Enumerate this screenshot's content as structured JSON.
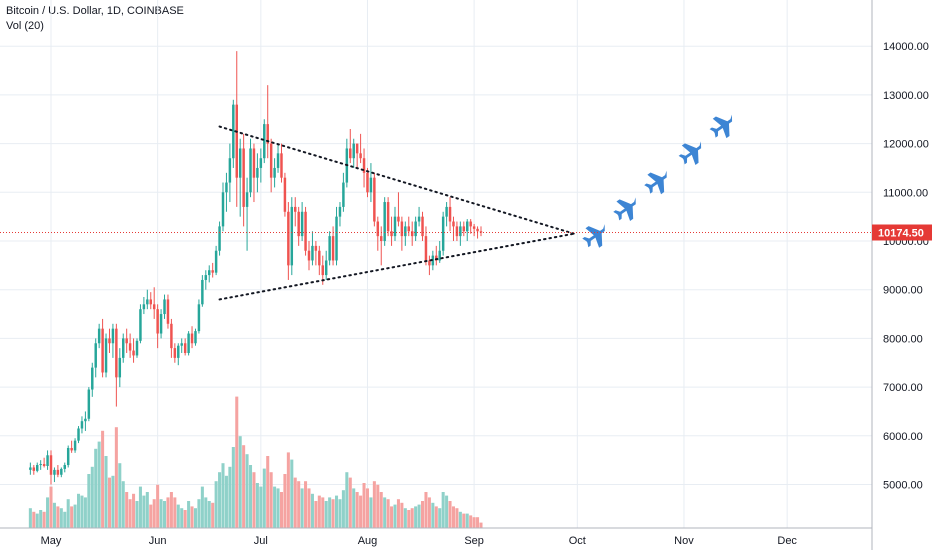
{
  "legend": {
    "symbol_line": "Bitcoin / U.S. Dollar, 1D, COINBASE",
    "volume_line": "Vol (20)"
  },
  "colors": {
    "up": "#26a69a",
    "down": "#ef5350",
    "vol_up": "#8fd1c9",
    "vol_down": "#f5a3a1",
    "grid": "#e8edf3",
    "price_line": "#e53935",
    "price_label_bg": "#e53935",
    "trendline": "#131722",
    "jet": "#3d85d4"
  },
  "icons": [
    "fighter-jet-icon"
  ],
  "chart_data": {
    "type": "candlestick",
    "title": "Bitcoin / U.S. Dollar, 1D, COINBASE",
    "indicator": "Vol (20)",
    "ylim": [
      4000,
      15000
    ],
    "y_ticks": [
      "14000.00",
      "13000.00",
      "12000.00",
      "11000.00",
      "10000.00",
      "9000.00",
      "8000.00",
      "7000.00",
      "6000.00",
      "5000.00"
    ],
    "x_ticks": [
      "May",
      "Jun",
      "Jul",
      "Aug",
      "Sep",
      "Oct",
      "Nov",
      "Dec"
    ],
    "x_tick_dates": [
      "2019-05-01",
      "2019-06-01",
      "2019-07-01",
      "2019-08-01",
      "2019-09-01",
      "2019-10-01",
      "2019-11-01",
      "2019-12-01"
    ],
    "last_price": "10174.50",
    "last_price_value": 10174.5,
    "grid": true,
    "start_date": "2019-04-25",
    "candles": [
      {
        "o": 5300,
        "h": 5450,
        "l": 5200,
        "c": 5350,
        "v": 1.1
      },
      {
        "o": 5350,
        "h": 5400,
        "l": 5200,
        "c": 5280,
        "v": 0.9
      },
      {
        "o": 5280,
        "h": 5450,
        "l": 5250,
        "c": 5400,
        "v": 0.8
      },
      {
        "o": 5400,
        "h": 5500,
        "l": 5300,
        "c": 5420,
        "v": 1.0
      },
      {
        "o": 5420,
        "h": 5550,
        "l": 5350,
        "c": 5380,
        "v": 0.9
      },
      {
        "o": 5380,
        "h": 5700,
        "l": 5300,
        "c": 5600,
        "v": 1.7
      },
      {
        "o": 5600,
        "h": 5700,
        "l": 5000,
        "c": 5200,
        "v": 2.3
      },
      {
        "o": 5200,
        "h": 5350,
        "l": 5050,
        "c": 5300,
        "v": 1.4
      },
      {
        "o": 5300,
        "h": 5400,
        "l": 5150,
        "c": 5200,
        "v": 1.2
      },
      {
        "o": 5200,
        "h": 5350,
        "l": 5150,
        "c": 5320,
        "v": 1.1
      },
      {
        "o": 5320,
        "h": 5450,
        "l": 5250,
        "c": 5400,
        "v": 0.9
      },
      {
        "o": 5400,
        "h": 5800,
        "l": 5350,
        "c": 5750,
        "v": 1.6
      },
      {
        "o": 5750,
        "h": 5900,
        "l": 5650,
        "c": 5700,
        "v": 1.2
      },
      {
        "o": 5700,
        "h": 5950,
        "l": 5650,
        "c": 5900,
        "v": 1.3
      },
      {
        "o": 5900,
        "h": 6200,
        "l": 5850,
        "c": 6150,
        "v": 1.9
      },
      {
        "o": 6150,
        "h": 6400,
        "l": 6050,
        "c": 6300,
        "v": 1.8
      },
      {
        "o": 6300,
        "h": 6500,
        "l": 6100,
        "c": 6350,
        "v": 1.7
      },
      {
        "o": 6350,
        "h": 7000,
        "l": 6300,
        "c": 6950,
        "v": 3.0
      },
      {
        "o": 6950,
        "h": 7500,
        "l": 6800,
        "c": 7400,
        "v": 3.4
      },
      {
        "o": 7400,
        "h": 8000,
        "l": 7200,
        "c": 7900,
        "v": 4.4
      },
      {
        "o": 7900,
        "h": 8300,
        "l": 7800,
        "c": 8200,
        "v": 4.8
      },
      {
        "o": 8200,
        "h": 8400,
        "l": 7200,
        "c": 7300,
        "v": 5.4
      },
      {
        "o": 7300,
        "h": 8100,
        "l": 7200,
        "c": 8000,
        "v": 4.0
      },
      {
        "o": 8000,
        "h": 8200,
        "l": 7700,
        "c": 7900,
        "v": 2.8
      },
      {
        "o": 7900,
        "h": 8300,
        "l": 7600,
        "c": 8200,
        "v": 2.9
      },
      {
        "o": 8200,
        "h": 8300,
        "l": 6600,
        "c": 7200,
        "v": 5.6
      },
      {
        "o": 7200,
        "h": 7800,
        "l": 7000,
        "c": 7600,
        "v": 3.6
      },
      {
        "o": 7600,
        "h": 8100,
        "l": 7500,
        "c": 8000,
        "v": 2.6
      },
      {
        "o": 8000,
        "h": 8200,
        "l": 7700,
        "c": 7900,
        "v": 2.0
      },
      {
        "o": 7900,
        "h": 8100,
        "l": 7600,
        "c": 7750,
        "v": 1.6
      },
      {
        "o": 7750,
        "h": 8000,
        "l": 7500,
        "c": 7650,
        "v": 1.9
      },
      {
        "o": 7650,
        "h": 8000,
        "l": 7600,
        "c": 7950,
        "v": 1.5
      },
      {
        "o": 7950,
        "h": 8700,
        "l": 7900,
        "c": 8600,
        "v": 2.3
      },
      {
        "o": 8600,
        "h": 8850,
        "l": 8500,
        "c": 8700,
        "v": 1.8
      },
      {
        "o": 8700,
        "h": 9000,
        "l": 8600,
        "c": 8800,
        "v": 2.0
      },
      {
        "o": 8800,
        "h": 8950,
        "l": 8600,
        "c": 8700,
        "v": 1.3
      },
      {
        "o": 8700,
        "h": 9050,
        "l": 8400,
        "c": 8600,
        "v": 1.6
      },
      {
        "o": 8600,
        "h": 8700,
        "l": 7800,
        "c": 8100,
        "v": 2.4
      },
      {
        "o": 8100,
        "h": 8600,
        "l": 8000,
        "c": 8500,
        "v": 1.6
      },
      {
        "o": 8500,
        "h": 8900,
        "l": 8400,
        "c": 8800,
        "v": 1.5
      },
      {
        "o": 8800,
        "h": 8900,
        "l": 8200,
        "c": 8300,
        "v": 1.7
      },
      {
        "o": 8300,
        "h": 8400,
        "l": 7600,
        "c": 7800,
        "v": 2.0
      },
      {
        "o": 7800,
        "h": 7900,
        "l": 7500,
        "c": 7600,
        "v": 1.7
      },
      {
        "o": 7600,
        "h": 7900,
        "l": 7450,
        "c": 7850,
        "v": 1.3
      },
      {
        "o": 7850,
        "h": 8000,
        "l": 7700,
        "c": 7900,
        "v": 1.1
      },
      {
        "o": 7900,
        "h": 8000,
        "l": 7650,
        "c": 7700,
        "v": 1.0
      },
      {
        "o": 7700,
        "h": 8150,
        "l": 7650,
        "c": 8100,
        "v": 1.5
      },
      {
        "o": 8100,
        "h": 8250,
        "l": 7800,
        "c": 7900,
        "v": 1.2
      },
      {
        "o": 7900,
        "h": 8200,
        "l": 7850,
        "c": 8150,
        "v": 1.1
      },
      {
        "o": 8150,
        "h": 8800,
        "l": 8100,
        "c": 8700,
        "v": 1.6
      },
      {
        "o": 8700,
        "h": 9300,
        "l": 8650,
        "c": 9200,
        "v": 2.3
      },
      {
        "o": 9200,
        "h": 9400,
        "l": 9000,
        "c": 9300,
        "v": 1.7
      },
      {
        "o": 9300,
        "h": 9500,
        "l": 9150,
        "c": 9400,
        "v": 1.5
      },
      {
        "o": 9400,
        "h": 9550,
        "l": 9250,
        "c": 9350,
        "v": 1.4
      },
      {
        "o": 9350,
        "h": 9900,
        "l": 9300,
        "c": 9800,
        "v": 2.6
      },
      {
        "o": 9800,
        "h": 10400,
        "l": 9700,
        "c": 10300,
        "v": 3.1
      },
      {
        "o": 10300,
        "h": 11200,
        "l": 10200,
        "c": 11000,
        "v": 3.6
      },
      {
        "o": 11000,
        "h": 11400,
        "l": 10600,
        "c": 11200,
        "v": 2.9
      },
      {
        "o": 11200,
        "h": 12000,
        "l": 10800,
        "c": 11700,
        "v": 3.4
      },
      {
        "o": 11700,
        "h": 12900,
        "l": 11500,
        "c": 12800,
        "v": 4.5
      },
      {
        "o": 12800,
        "h": 13900,
        "l": 10700,
        "c": 11300,
        "v": 7.3
      },
      {
        "o": 11300,
        "h": 12100,
        "l": 10500,
        "c": 11900,
        "v": 5.1
      },
      {
        "o": 11900,
        "h": 12200,
        "l": 10300,
        "c": 10700,
        "v": 4.6
      },
      {
        "o": 10700,
        "h": 11300,
        "l": 9800,
        "c": 11000,
        "v": 4.1
      },
      {
        "o": 11000,
        "h": 12100,
        "l": 10900,
        "c": 11900,
        "v": 3.5
      },
      {
        "o": 11900,
        "h": 12000,
        "l": 10800,
        "c": 11300,
        "v": 3.1
      },
      {
        "o": 11300,
        "h": 11800,
        "l": 11000,
        "c": 11500,
        "v": 2.5
      },
      {
        "o": 11500,
        "h": 11900,
        "l": 11200,
        "c": 11700,
        "v": 2.3
      },
      {
        "o": 11700,
        "h": 12500,
        "l": 11600,
        "c": 12400,
        "v": 3.3
      },
      {
        "o": 12400,
        "h": 13200,
        "l": 11700,
        "c": 12000,
        "v": 4.0
      },
      {
        "o": 12000,
        "h": 12100,
        "l": 11000,
        "c": 11300,
        "v": 3.1
      },
      {
        "o": 11300,
        "h": 11700,
        "l": 11100,
        "c": 11500,
        "v": 2.3
      },
      {
        "o": 11500,
        "h": 12000,
        "l": 11400,
        "c": 11800,
        "v": 2.2
      },
      {
        "o": 11800,
        "h": 12000,
        "l": 11200,
        "c": 11300,
        "v": 2.0
      },
      {
        "o": 11300,
        "h": 11400,
        "l": 10500,
        "c": 10600,
        "v": 3.0
      },
      {
        "o": 10600,
        "h": 10800,
        "l": 9200,
        "c": 9500,
        "v": 4.2
      },
      {
        "o": 9500,
        "h": 10900,
        "l": 9300,
        "c": 10700,
        "v": 3.8
      },
      {
        "o": 10700,
        "h": 10900,
        "l": 10300,
        "c": 10600,
        "v": 2.8
      },
      {
        "o": 10600,
        "h": 10700,
        "l": 9900,
        "c": 10100,
        "v": 2.6
      },
      {
        "o": 10100,
        "h": 10800,
        "l": 10000,
        "c": 10600,
        "v": 2.2
      },
      {
        "o": 10600,
        "h": 10700,
        "l": 9700,
        "c": 9800,
        "v": 2.6
      },
      {
        "o": 9800,
        "h": 10000,
        "l": 9400,
        "c": 9600,
        "v": 2.2
      },
      {
        "o": 9600,
        "h": 10200,
        "l": 9500,
        "c": 9900,
        "v": 1.9
      },
      {
        "o": 9900,
        "h": 10000,
        "l": 9500,
        "c": 9800,
        "v": 1.5
      },
      {
        "o": 9800,
        "h": 9900,
        "l": 9300,
        "c": 9500,
        "v": 1.8
      },
      {
        "o": 9500,
        "h": 9700,
        "l": 9100,
        "c": 9300,
        "v": 1.7
      },
      {
        "o": 9300,
        "h": 9800,
        "l": 9200,
        "c": 9600,
        "v": 1.5
      },
      {
        "o": 9600,
        "h": 10200,
        "l": 9500,
        "c": 10100,
        "v": 1.7
      },
      {
        "o": 10100,
        "h": 10300,
        "l": 9500,
        "c": 9600,
        "v": 1.6
      },
      {
        "o": 9600,
        "h": 10700,
        "l": 9500,
        "c": 10500,
        "v": 1.8
      },
      {
        "o": 10500,
        "h": 10800,
        "l": 10300,
        "c": 10700,
        "v": 1.6
      },
      {
        "o": 10700,
        "h": 11400,
        "l": 10600,
        "c": 11200,
        "v": 2.1
      },
      {
        "o": 11200,
        "h": 12100,
        "l": 11100,
        "c": 11900,
        "v": 3.1
      },
      {
        "o": 11900,
        "h": 12300,
        "l": 11600,
        "c": 11700,
        "v": 2.8
      },
      {
        "o": 11700,
        "h": 12100,
        "l": 11500,
        "c": 12000,
        "v": 2.2
      },
      {
        "o": 12000,
        "h": 12000,
        "l": 11500,
        "c": 11800,
        "v": 2.0
      },
      {
        "o": 11800,
        "h": 12200,
        "l": 11600,
        "c": 11700,
        "v": 1.8
      },
      {
        "o": 11700,
        "h": 11900,
        "l": 11100,
        "c": 11400,
        "v": 2.5
      },
      {
        "o": 11400,
        "h": 11500,
        "l": 10900,
        "c": 11000,
        "v": 2.2
      },
      {
        "o": 11000,
        "h": 11600,
        "l": 10800,
        "c": 11300,
        "v": 1.7
      },
      {
        "o": 11300,
        "h": 11400,
        "l": 10300,
        "c": 10400,
        "v": 2.6
      },
      {
        "o": 10400,
        "h": 10500,
        "l": 9800,
        "c": 10100,
        "v": 2.4
      },
      {
        "o": 10100,
        "h": 10300,
        "l": 9500,
        "c": 10000,
        "v": 2.0
      },
      {
        "o": 10000,
        "h": 10900,
        "l": 9900,
        "c": 10800,
        "v": 1.7
      },
      {
        "o": 10800,
        "h": 10900,
        "l": 10100,
        "c": 10200,
        "v": 1.6
      },
      {
        "o": 10200,
        "h": 10500,
        "l": 9900,
        "c": 10100,
        "v": 1.2
      },
      {
        "o": 10100,
        "h": 10700,
        "l": 10000,
        "c": 10500,
        "v": 1.3
      },
      {
        "o": 10500,
        "h": 11000,
        "l": 10300,
        "c": 10400,
        "v": 1.6
      },
      {
        "o": 10400,
        "h": 10500,
        "l": 9800,
        "c": 10100,
        "v": 1.4
      },
      {
        "o": 10100,
        "h": 10400,
        "l": 9900,
        "c": 10300,
        "v": 1.1
      },
      {
        "o": 10300,
        "h": 10500,
        "l": 10100,
        "c": 10200,
        "v": 1.0
      },
      {
        "o": 10200,
        "h": 10400,
        "l": 9900,
        "c": 10100,
        "v": 1.1
      },
      {
        "o": 10100,
        "h": 10500,
        "l": 10000,
        "c": 10400,
        "v": 1.2
      },
      {
        "o": 10400,
        "h": 10700,
        "l": 10300,
        "c": 10500,
        "v": 1.3
      },
      {
        "o": 10500,
        "h": 10600,
        "l": 10000,
        "c": 10100,
        "v": 1.5
      },
      {
        "o": 10100,
        "h": 10300,
        "l": 9500,
        "c": 9600,
        "v": 2.0
      },
      {
        "o": 9600,
        "h": 9700,
        "l": 9300,
        "c": 9500,
        "v": 1.7
      },
      {
        "o": 9500,
        "h": 9800,
        "l": 9400,
        "c": 9700,
        "v": 1.4
      },
      {
        "o": 9700,
        "h": 9900,
        "l": 9500,
        "c": 9600,
        "v": 1.2
      },
      {
        "o": 9600,
        "h": 10000,
        "l": 9550,
        "c": 9800,
        "v": 1.1
      },
      {
        "o": 9800,
        "h": 10600,
        "l": 9700,
        "c": 10500,
        "v": 2.0
      },
      {
        "o": 10500,
        "h": 10800,
        "l": 10300,
        "c": 10700,
        "v": 1.8
      },
      {
        "o": 10700,
        "h": 10900,
        "l": 10200,
        "c": 10400,
        "v": 1.5
      },
      {
        "o": 10400,
        "h": 10500,
        "l": 10000,
        "c": 10300,
        "v": 1.2
      },
      {
        "o": 10300,
        "h": 10400,
        "l": 10000,
        "c": 10100,
        "v": 1.1
      },
      {
        "o": 10100,
        "h": 10400,
        "l": 9900,
        "c": 10300,
        "v": 0.9
      },
      {
        "o": 10300,
        "h": 10400,
        "l": 10100,
        "c": 10200,
        "v": 0.8
      },
      {
        "o": 10200,
        "h": 10450,
        "l": 10000,
        "c": 10400,
        "v": 0.8
      },
      {
        "o": 10400,
        "h": 10450,
        "l": 10150,
        "c": 10300,
        "v": 0.7
      },
      {
        "o": 10300,
        "h": 10350,
        "l": 10100,
        "c": 10250,
        "v": 0.6
      },
      {
        "o": 10250,
        "h": 10300,
        "l": 10050,
        "c": 10200,
        "v": 0.6
      },
      {
        "o": 10200,
        "h": 10300,
        "l": 10100,
        "c": 10174.5,
        "v": 0.3
      }
    ],
    "trendlines": [
      {
        "name": "upper-trendline",
        "from": {
          "date": "2019-06-19",
          "price": 12350
        },
        "to": {
          "date": "2019-09-30",
          "price": 10150
        }
      },
      {
        "name": "lower-trendline",
        "from": {
          "date": "2019-06-19",
          "price": 8800
        },
        "to": {
          "date": "2019-09-30",
          "price": 10150
        }
      }
    ],
    "jets": [
      {
        "date": "2019-10-06",
        "price": 10200
      },
      {
        "date": "2019-10-15",
        "price": 10750
      },
      {
        "date": "2019-10-24",
        "price": 11300
      },
      {
        "date": "2019-11-03",
        "price": 11900
      },
      {
        "date": "2019-11-12",
        "price": 12450
      }
    ]
  }
}
